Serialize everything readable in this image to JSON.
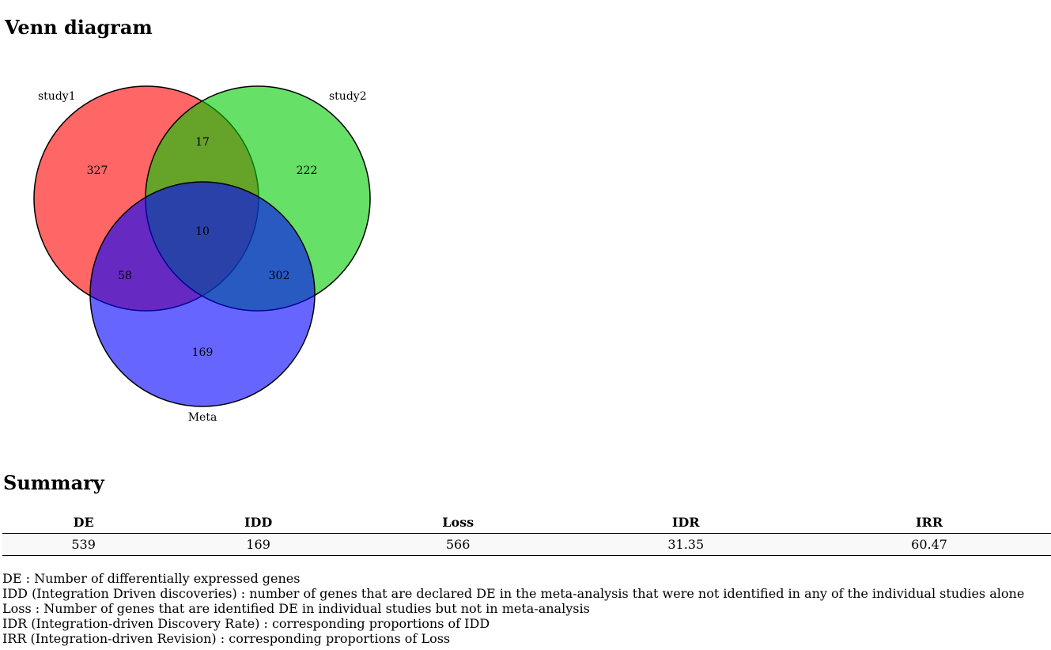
{
  "venn_section": {
    "title": "Venn diagram",
    "sets": [
      {
        "name": "study1",
        "color": "#ff0000"
      },
      {
        "name": "study2",
        "color": "#00cc00"
      },
      {
        "name": "Meta",
        "color": "#0000ff"
      }
    ],
    "regions": {
      "study1_only": "327",
      "study2_only": "222",
      "study1_study2": "17",
      "all_three": "10",
      "study1_meta": "58",
      "study2_meta": "302",
      "meta_only": "169"
    }
  },
  "summary": {
    "title": "Summary",
    "columns": [
      "DE",
      "IDD",
      "Loss",
      "IDR",
      "IRR"
    ],
    "row": [
      "539",
      "169",
      "566",
      "31.35",
      "60.47"
    ]
  },
  "definitions": [
    "DE : Number of differentially expressed genes",
    "IDD (Integration Driven discoveries) : number of genes that are declared DE in the meta-analysis that were not identified in any of the individual studies alone",
    "Loss : Number of genes that are identified DE in individual studies but not in meta-analysis",
    "IDR (Integration-driven Discovery Rate) : corresponding proportions of IDD",
    "IRR (Integration-driven Revision) : corresponding proportions of Loss"
  ]
}
